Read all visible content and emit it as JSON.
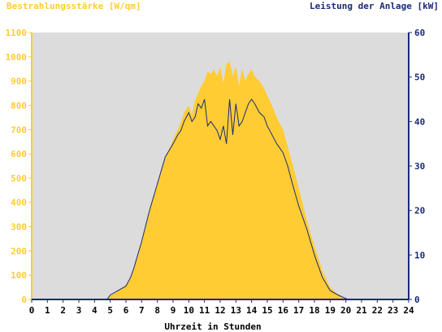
{
  "chart_data": {
    "type": "area",
    "left_axis_title": "Bestrahlungsstärke [W/qm]",
    "right_axis_title": "Leistung der Anlage [kW]",
    "xlabel": "Uhrzeit in Stunden",
    "x_ticks": [
      "0",
      "1",
      "2",
      "3",
      "4",
      "5",
      "6",
      "7",
      "8",
      "9",
      "10",
      "11",
      "12",
      "13",
      "14",
      "15",
      "16",
      "17",
      "18",
      "19",
      "20",
      "21",
      "22",
      "23",
      "24"
    ],
    "left_ticks": [
      "0",
      "100",
      "200",
      "300",
      "400",
      "500",
      "600",
      "700",
      "800",
      "900",
      "1000",
      "1100"
    ],
    "right_ticks": [
      "0",
      "10",
      "20",
      "30",
      "40",
      "50",
      "60"
    ],
    "xlim": [
      0,
      24
    ],
    "ylim_left": [
      0,
      1100
    ],
    "ylim_right": [
      0,
      60
    ],
    "grid": false,
    "colors": {
      "plot_background": "#dcdcdc",
      "irradiance_fill": "#ffcc33",
      "power_line": "#1a2a7a",
      "left_axis": "#ffcc33",
      "right_axis": "#1a2a7a"
    },
    "series": [
      {
        "key": "irradiance",
        "axis": "left",
        "x": [
          0,
          4.8,
          5.0,
          5.5,
          6.0,
          6.3,
          6.5,
          7.0,
          7.5,
          8.0,
          8.5,
          9.0,
          9.3,
          9.5,
          9.7,
          10.0,
          10.2,
          10.4,
          10.6,
          10.8,
          11.0,
          11.2,
          11.4,
          11.6,
          11.8,
          12.0,
          12.2,
          12.4,
          12.6,
          12.8,
          13.0,
          13.2,
          13.4,
          13.6,
          13.8,
          14.0,
          14.2,
          14.5,
          14.8,
          15.0,
          15.3,
          15.6,
          16.0,
          16.3,
          16.6,
          17.0,
          17.5,
          18.0,
          18.5,
          19.0,
          19.5,
          20.0,
          20.2,
          20.5,
          24
        ],
        "values": [
          0,
          0,
          15,
          35,
          60,
          90,
          130,
          240,
          370,
          480,
          580,
          660,
          700,
          730,
          770,
          800,
          760,
          820,
          850,
          880,
          900,
          940,
          930,
          950,
          920,
          960,
          890,
          970,
          980,
          920,
          960,
          880,
          950,
          900,
          930,
          950,
          920,
          900,
          870,
          840,
          800,
          750,
          700,
          630,
          560,
          460,
          330,
          220,
          120,
          50,
          20,
          5,
          0,
          0,
          0
        ]
      },
      {
        "key": "power",
        "axis": "right",
        "x": [
          0,
          4.8,
          5.0,
          5.5,
          6.0,
          6.3,
          6.5,
          7.0,
          7.5,
          8.0,
          8.5,
          9.0,
          9.3,
          9.5,
          9.7,
          10.0,
          10.2,
          10.4,
          10.6,
          10.8,
          11.0,
          11.2,
          11.4,
          11.6,
          11.8,
          12.0,
          12.2,
          12.4,
          12.6,
          12.8,
          13.0,
          13.2,
          13.4,
          13.6,
          13.8,
          14.0,
          14.2,
          14.5,
          14.8,
          15.0,
          15.3,
          15.6,
          16.0,
          16.3,
          16.6,
          17.0,
          17.5,
          18.0,
          18.5,
          19.0,
          19.5,
          20.0,
          20.2,
          20.5,
          24
        ],
        "values": [
          0,
          0,
          1,
          2,
          3,
          5,
          7,
          13,
          20,
          26,
          32,
          35,
          37,
          38,
          40,
          42,
          40,
          41,
          44,
          43,
          45,
          39,
          40,
          39,
          38,
          36,
          39,
          35,
          45,
          37,
          44,
          39,
          40,
          42,
          44,
          45,
          44,
          42,
          41,
          39,
          37,
          35,
          33,
          30,
          26,
          21,
          16,
          10,
          5,
          2,
          1,
          0.2,
          0,
          0,
          0
        ]
      }
    ]
  }
}
